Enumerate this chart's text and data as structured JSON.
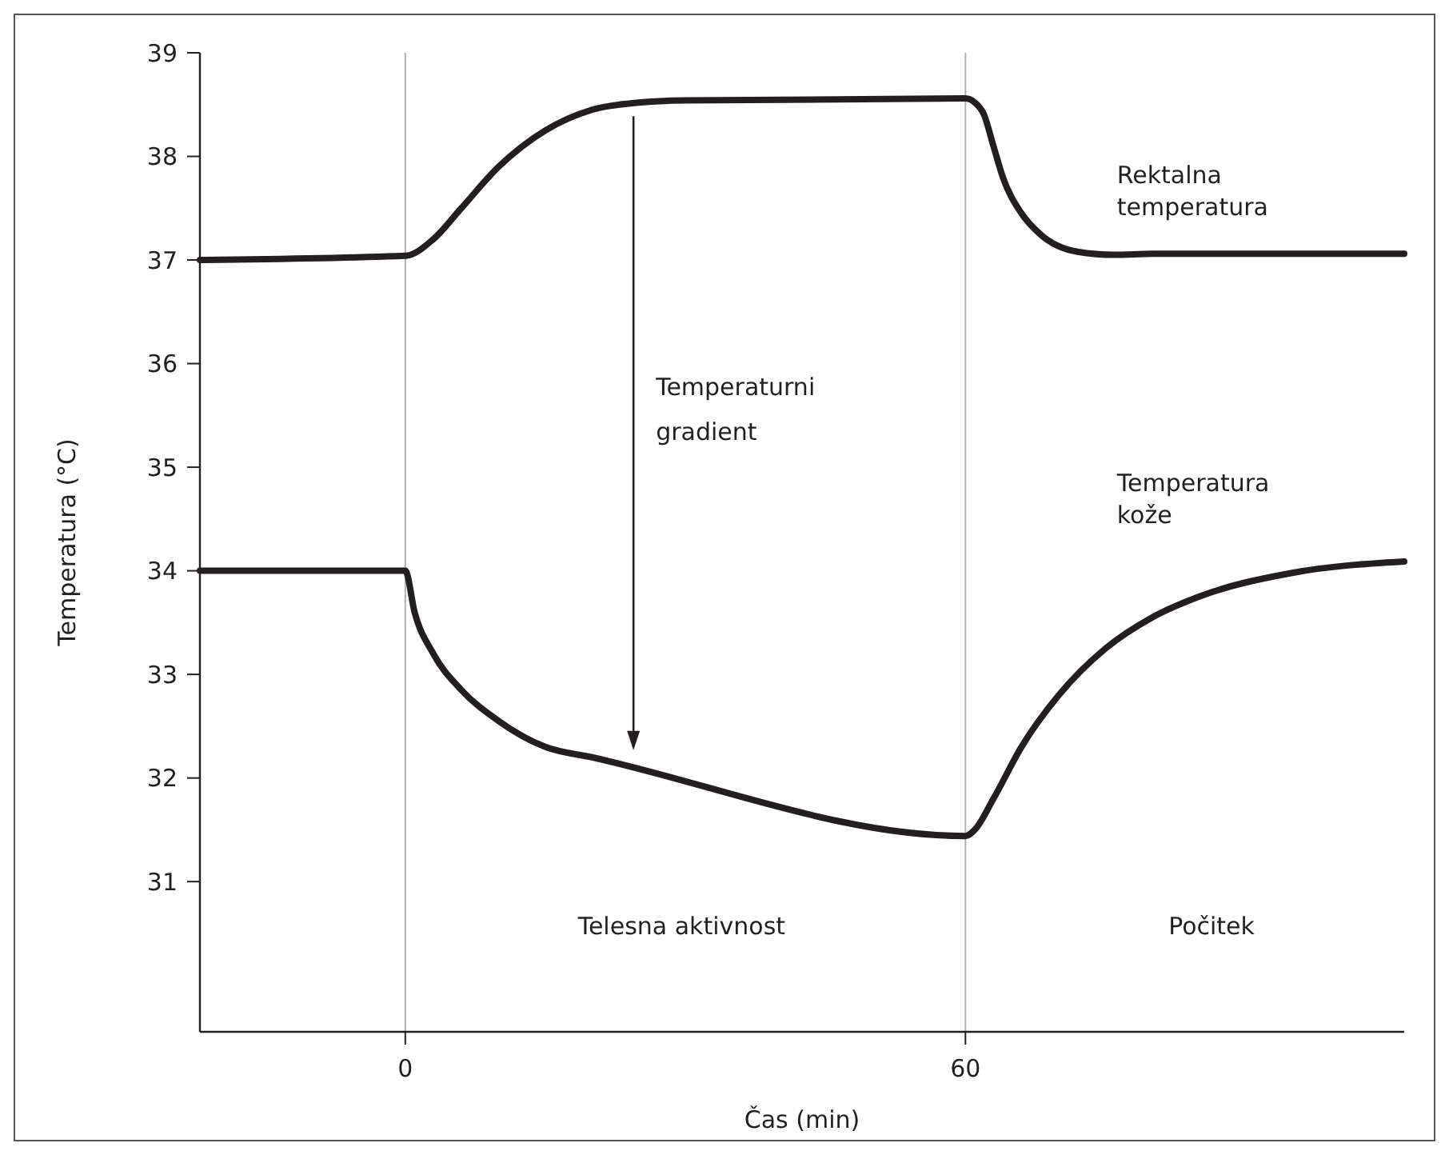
{
  "chart_data": {
    "type": "line",
    "xlabel": "Čas (min)",
    "ylabel": "Temperatura (°C)",
    "xlim": [
      -22,
      107
    ],
    "xticks": [
      0,
      60
    ],
    "ylim": [
      29.55,
      39
    ],
    "yticks": [
      31,
      32,
      33,
      34,
      35,
      36,
      37,
      38,
      39
    ],
    "grid": false,
    "marker": "none",
    "line_style": "solid",
    "x": [
      -22,
      0,
      3,
      6,
      10,
      15,
      20,
      25,
      30,
      60,
      61,
      62,
      63,
      64,
      66,
      68,
      72,
      76,
      80,
      107
    ],
    "series": [
      {
        "name": "Rektalna temperatura",
        "color": "#231f20",
        "values": [
          37.0,
          37.04,
          37.2,
          37.5,
          37.9,
          38.25,
          38.45,
          38.52,
          38.54,
          38.56,
          38.52,
          38.4,
          38.1,
          37.8,
          37.45,
          37.25,
          37.08,
          37.05,
          37.06,
          37.06
        ]
      },
      {
        "name": "Temperatura kože",
        "color": "#231f20",
        "x": [
          -22,
          0,
          1,
          3,
          6,
          10,
          15,
          20,
          60,
          61,
          63,
          66,
          70,
          75,
          80,
          85,
          95,
          107
        ],
        "values": [
          34.0,
          34.0,
          33.6,
          33.2,
          32.85,
          32.55,
          32.3,
          32.2,
          31.44,
          31.5,
          31.8,
          32.3,
          32.8,
          33.25,
          33.55,
          33.75,
          33.98,
          34.09
        ]
      }
    ],
    "ref_lines": [
      {
        "axis": "x",
        "value": 0,
        "color": "#b0b0b0"
      },
      {
        "axis": "x",
        "value": 60,
        "color": "#b0b0b0"
      }
    ],
    "annotations": [
      "Temperaturni gradient",
      "Telesna aktivnost",
      "Počitek"
    ]
  }
}
